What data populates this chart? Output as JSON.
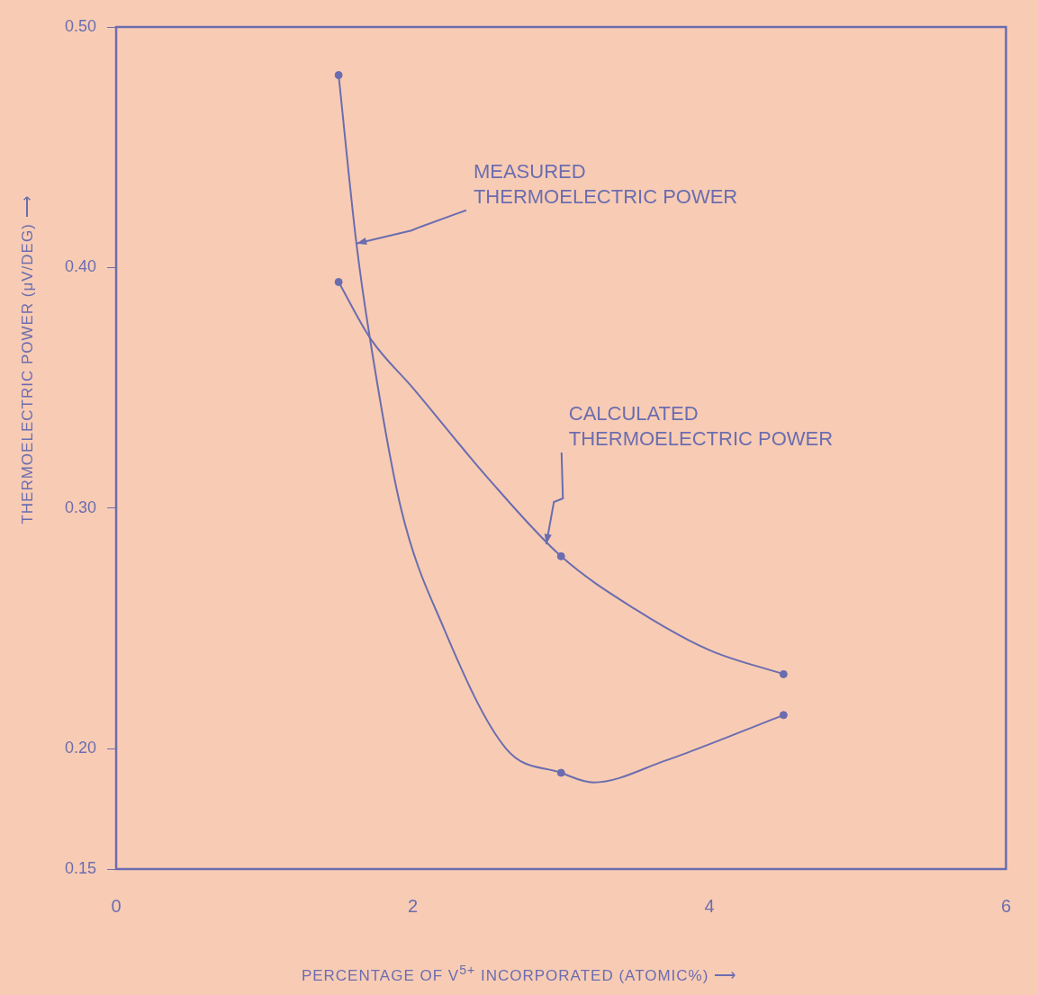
{
  "chart_data": {
    "type": "line",
    "xlabel": "PERCENTAGE OF V$^{5+}$ INCORPORATED (ATOMIC%) ⟶",
    "ylabel": "THERMOELECTRIC POWER (μV/DEG) ⟶",
    "xlim": [
      0,
      6
    ],
    "xticks": [
      0,
      2,
      4,
      6
    ],
    "ylim": [
      0.15,
      0.5
    ],
    "yticks": [
      {
        "value": 0.15,
        "label": "0.15"
      },
      {
        "value": 0.2,
        "label": "0.20"
      },
      {
        "value": 0.3,
        "label": "0.30"
      },
      {
        "value": 0.4,
        "label": "0.40"
      },
      {
        "value": 0.5,
        "label": "0.50"
      }
    ],
    "grid": false,
    "legend": false,
    "series": [
      {
        "type": "line",
        "marker": "none",
        "color": "#6b6db0",
        "x": [
          1.5,
          1.62,
          1.71,
          1.92,
          2.21,
          2.63,
          3.0,
          3.22,
          3.7,
          4.5
        ],
        "values": [
          0.48,
          0.41,
          0.371,
          0.3,
          0.25,
          0.2,
          0.19,
          0.186,
          0.195,
          0.214
        ]
      },
      {
        "type": "scatter",
        "marker": "circle",
        "color": "#6b6db0",
        "x": [
          1.5,
          3.0,
          4.5
        ],
        "values": [
          0.48,
          0.19,
          0.214
        ]
      },
      {
        "type": "line",
        "marker": "none",
        "color": "#6b6db0",
        "x": [
          1.5,
          1.72,
          2.0,
          2.5,
          3.0,
          3.5,
          4.0,
          4.5
        ],
        "values": [
          0.394,
          0.37,
          0.35,
          0.313,
          0.28,
          0.258,
          0.241,
          0.231
        ]
      },
      {
        "type": "scatter",
        "marker": "circle",
        "color": "#6b6db0",
        "x": [
          1.5,
          3.0,
          4.5
        ],
        "values": [
          0.394,
          0.28,
          0.231
        ]
      }
    ],
    "annotations": [
      {
        "text": "MEASURED\nTHERMOELECTRIC POWER",
        "x": 1.62,
        "y": 0.41
      },
      {
        "text": "CALCULATED\nTHERMOELECTRIC POWER",
        "x": 2.9,
        "y": 0.285
      }
    ]
  }
}
